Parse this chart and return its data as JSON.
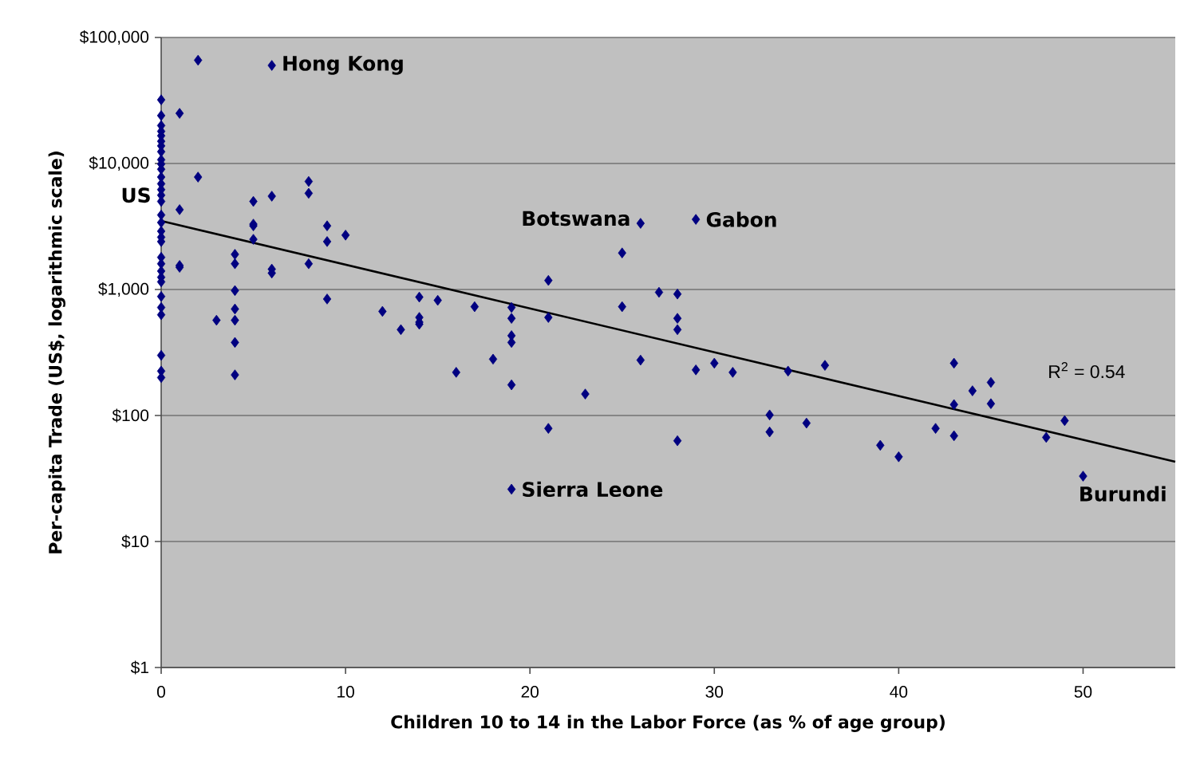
{
  "chart_data": {
    "type": "scatter",
    "xlabel": "Children 10 to 14 in the Labor Force (as % of age group)",
    "ylabel": "Per-capita Trade (US$, logarithmic scale)",
    "xlim": [
      0,
      55
    ],
    "xticks": [
      0,
      10,
      20,
      30,
      40,
      50
    ],
    "ylim": [
      1,
      100000
    ],
    "yticks": [
      {
        "value": 1,
        "label": "$1"
      },
      {
        "value": 10,
        "label": "$10"
      },
      {
        "value": 100,
        "label": "$100"
      },
      {
        "value": 1000,
        "label": "$1,000"
      },
      {
        "value": 10000,
        "label": "$10,000"
      },
      {
        "value": 100000,
        "label": "$100,000"
      }
    ],
    "log": "y",
    "grid": "y",
    "marker": "diamond",
    "series": [
      {
        "color": "#000080",
        "x": [
          0,
          0,
          0,
          0,
          0,
          0,
          0,
          0,
          0,
          0,
          0,
          0,
          0,
          0,
          0,
          0,
          0,
          0,
          0,
          0,
          0,
          0,
          0,
          0,
          0,
          0,
          0,
          0,
          0,
          0,
          0,
          0,
          1,
          1,
          1,
          1,
          2,
          2,
          3,
          4,
          4,
          4,
          4,
          4,
          4,
          4,
          5,
          5,
          5,
          5,
          6,
          6,
          6,
          6,
          8,
          8,
          8,
          9,
          9,
          9,
          10,
          12,
          13,
          14,
          14,
          14,
          14,
          15,
          16,
          17,
          18,
          19,
          19,
          19,
          19,
          19,
          19,
          21,
          21,
          21,
          23,
          25,
          25,
          26,
          26,
          27,
          28,
          28,
          28,
          28,
          29,
          29,
          30,
          31,
          33,
          33,
          34,
          35,
          36,
          39,
          40,
          42,
          43,
          43,
          43,
          44,
          45,
          45,
          48,
          49,
          50
        ],
        "values": [
          32000,
          24000,
          20000,
          18000,
          16600,
          15000,
          13800,
          12400,
          10700,
          9900,
          9000,
          7800,
          6900,
          6200,
          5600,
          5000,
          3900,
          3400,
          2900,
          2600,
          2400,
          1800,
          1600,
          1400,
          1250,
          1150,
          880,
          720,
          630,
          300,
          225,
          200,
          25000,
          4300,
          1550,
          1500,
          66000,
          7800,
          570,
          1900,
          1600,
          980,
          700,
          570,
          380,
          210,
          5000,
          3300,
          3200,
          2500,
          60000,
          5500,
          1450,
          1350,
          7200,
          5800,
          1600,
          3200,
          2400,
          840,
          2700,
          670,
          480,
          870,
          600,
          550,
          530,
          820,
          220,
          730,
          280,
          720,
          590,
          430,
          380,
          175,
          26,
          1180,
          600,
          79,
          148,
          1950,
          730,
          3350,
          275,
          950,
          920,
          590,
          480,
          63,
          3600,
          230,
          260,
          220,
          101,
          74,
          225,
          87,
          250,
          58,
          47,
          79,
          260,
          122,
          69,
          157,
          183,
          124,
          67,
          91,
          33
        ]
      },
      {
        "type": "line",
        "marker": "none",
        "color": "#000000",
        "x": [
          0,
          55
        ],
        "values": [
          3500,
          43
        ]
      }
    ],
    "annotations": [
      {
        "text": "US",
        "x": 0,
        "y": 5600
      },
      {
        "text": "Hong Kong",
        "x": 6,
        "y": 60000
      },
      {
        "text": "Botswana",
        "x": 26,
        "y": 3350
      },
      {
        "text": "Gabon",
        "x": 29,
        "y": 3600
      },
      {
        "text": "Sierra Leone",
        "x": 19,
        "y": 26
      },
      {
        "text": "Burundi",
        "x": 50,
        "y": 33
      },
      "R$^{2}$ = 0.54"
    ]
  }
}
